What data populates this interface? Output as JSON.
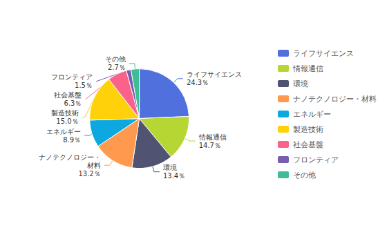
{
  "chart_data": {
    "type": "pie",
    "categories": [
      "ライフサイエンス",
      "情報通信",
      "環境",
      "ナノテクノロジー・材料",
      "エネルギー",
      "製造技術",
      "社会基盤",
      "フロンティア",
      "その他"
    ],
    "values": [
      24.3,
      14.7,
      13.4,
      13.2,
      8.9,
      15.0,
      6.3,
      1.5,
      2.7
    ],
    "value_labels": [
      "ライフサイエンス\n24.3％",
      "情報通信\n14.7％",
      "環境\n13.4％",
      "ナノテクノロジー・\n材料\n13.2％",
      "エネルギー\n8.9％",
      "製造技術\n15.0％",
      "社会基盤\n6.3％",
      "フロンティア\n1.5％",
      "その他\n2.7％"
    ],
    "data_labels": true,
    "legend": "right"
  }
}
